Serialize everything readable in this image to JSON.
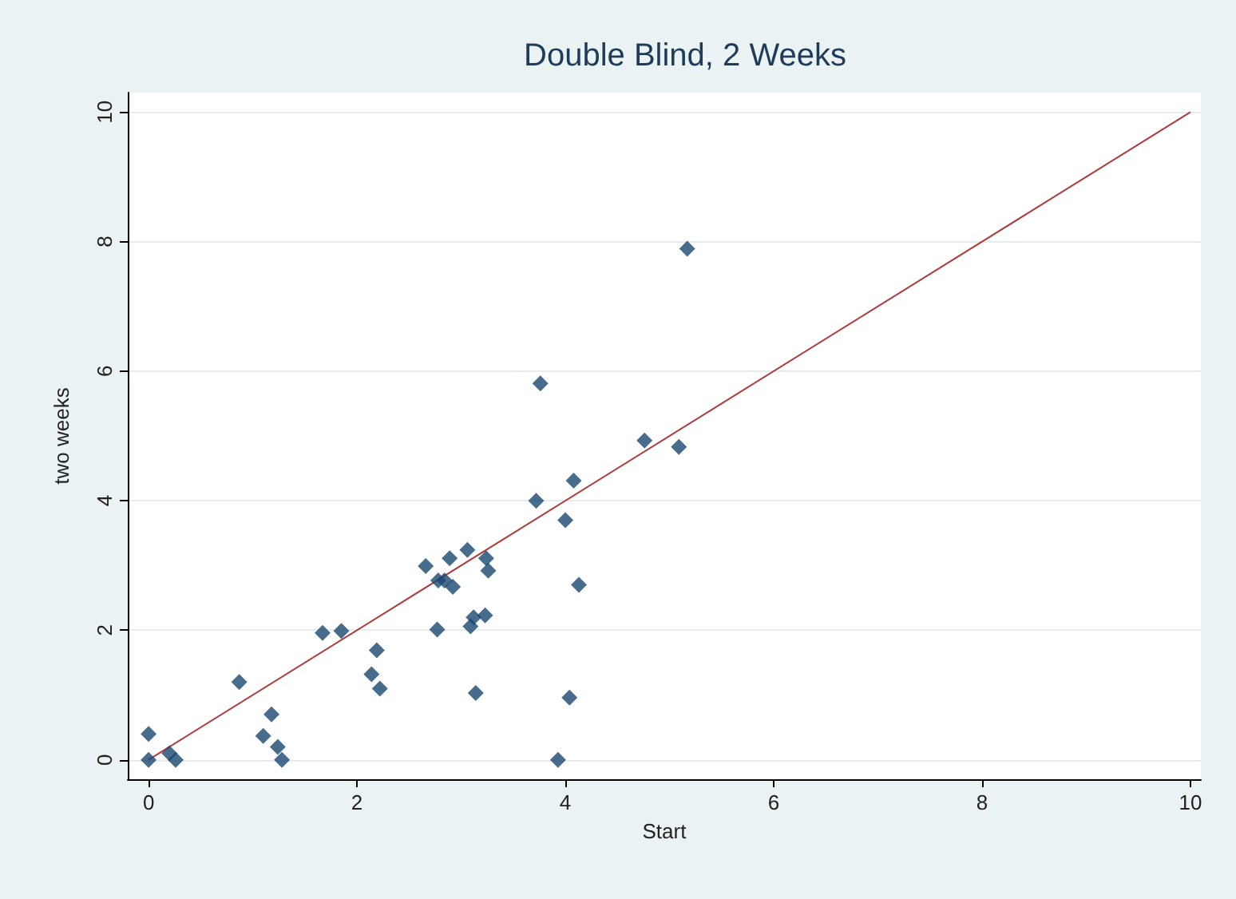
{
  "chart_data": {
    "type": "scatter",
    "title": "Double Blind, 2 Weeks",
    "xlabel": "Start",
    "ylabel": "two weeks",
    "xlim": [
      -0.2,
      10.1
    ],
    "xticks": [
      0,
      2,
      4,
      6,
      8,
      10
    ],
    "ylim": [
      -0.3,
      10.3
    ],
    "yticks": [
      0,
      2,
      4,
      6,
      8,
      10
    ],
    "grid": "y",
    "marker": "diamond",
    "series": [
      {
        "color": "#1a476f",
        "x": [
          0,
          0,
          0.2,
          0.26,
          0.87,
          1.1,
          1.18,
          1.24,
          1.28,
          1.67,
          1.85,
          2.14,
          2.19,
          2.22,
          2.66,
          2.77,
          2.78,
          2.84,
          2.89,
          2.92,
          3.06,
          3.09,
          3.12,
          3.14,
          3.23,
          3.24,
          3.26,
          3.72,
          3.76,
          3.93,
          4.0,
          4.04,
          4.08,
          4.13,
          4.76,
          5.09,
          5.17
        ],
        "values": [
          0.4,
          0,
          0.1,
          0,
          1.2,
          0.37,
          0.7,
          0.2,
          0,
          1.96,
          1.99,
          1.32,
          1.69,
          1.1,
          2.99,
          2.01,
          2.77,
          2.77,
          3.11,
          2.67,
          3.24,
          2.06,
          2.2,
          1.03,
          2.23,
          3.11,
          2.92,
          4.0,
          5.81,
          0,
          3.7,
          0.96,
          4.31,
          2.7,
          4.93,
          4.83,
          7.89
        ]
      },
      {
        "type": "line",
        "color": "#b03a3a",
        "marker": "none",
        "x": [
          0,
          10
        ],
        "values": [
          0,
          10
        ]
      }
    ]
  }
}
